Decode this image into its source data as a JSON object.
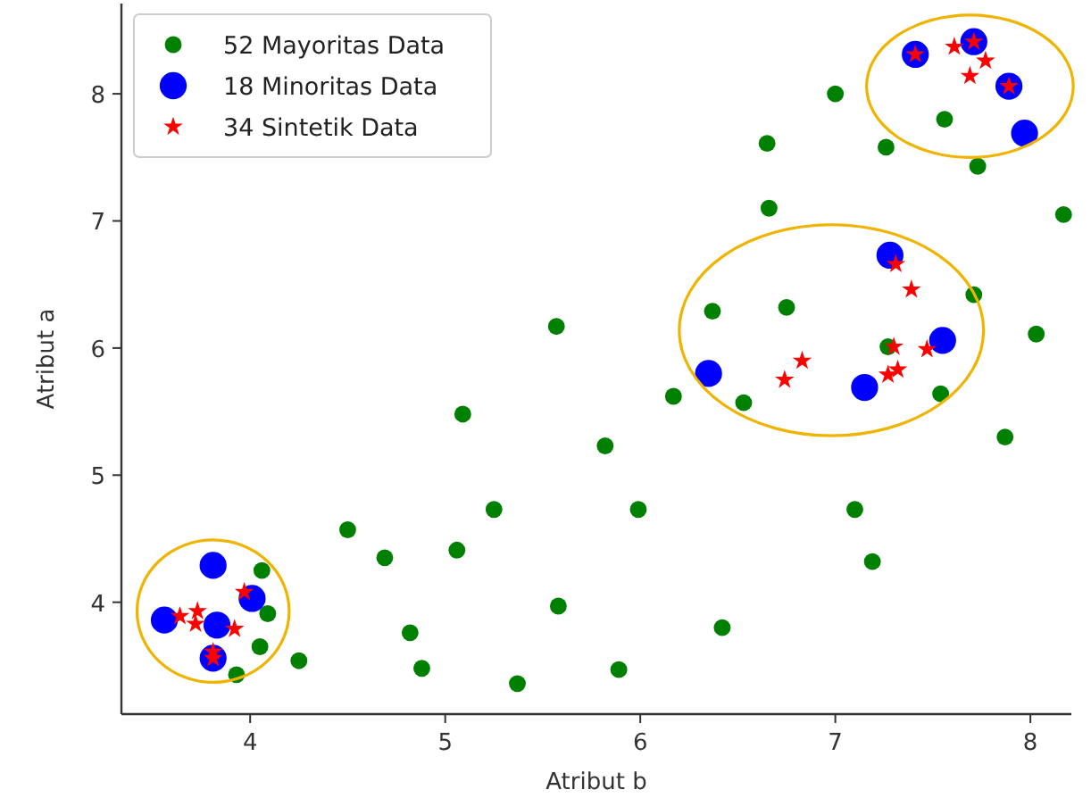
{
  "chart_data": {
    "type": "scatter",
    "xlabel": "Atribut b",
    "ylabel": "Atribut a",
    "xlim": [
      3.34,
      8.21
    ],
    "ylim": [
      3.12,
      8.71
    ],
    "xticks": [
      4,
      5,
      6,
      7,
      8
    ],
    "yticks": [
      4,
      5,
      6,
      7,
      8
    ],
    "grid": false,
    "legend": "top left",
    "series": [
      {
        "name": "52 Mayoritas Data",
        "color": "#008000",
        "marker": "circle",
        "x": [
          7.0,
          6.65,
          7.26,
          7.56,
          7.73,
          6.66,
          8.17,
          6.37,
          6.75,
          7.71,
          5.57,
          8.03,
          7.27,
          6.17,
          6.53,
          7.54,
          7.87,
          5.82,
          5.99,
          7.1,
          7.19,
          5.58,
          6.42,
          5.89,
          4.5,
          4.69,
          5.06,
          5.25,
          4.06,
          4.09,
          4.05,
          3.93,
          4.25,
          4.82,
          4.88,
          5.37,
          5.09
        ],
        "values": [
          8.0,
          7.61,
          7.58,
          7.8,
          7.43,
          7.1,
          7.05,
          6.29,
          6.32,
          6.42,
          6.17,
          6.11,
          6.01,
          5.62,
          5.57,
          5.64,
          5.3,
          5.23,
          4.73,
          4.73,
          4.32,
          3.97,
          3.8,
          3.47,
          4.57,
          4.35,
          4.41,
          4.73,
          4.25,
          3.91,
          3.65,
          3.43,
          3.54,
          3.76,
          3.48,
          3.36,
          5.48
        ]
      },
      {
        "name": "18 Minoritas Data",
        "color": "#0000ff",
        "marker": "circle",
        "x": [
          7.41,
          7.71,
          7.89,
          7.97,
          7.28,
          7.55,
          7.15,
          6.35,
          3.81,
          4.01,
          3.56,
          3.83,
          3.81
        ],
        "values": [
          8.31,
          8.41,
          8.06,
          7.69,
          6.73,
          6.06,
          5.69,
          5.8,
          4.29,
          4.03,
          3.86,
          3.82,
          3.56
        ]
      },
      {
        "name": "34 Sintetik Data",
        "color": "#ff0000",
        "marker": "star",
        "x": [
          7.41,
          7.61,
          7.71,
          7.77,
          7.69,
          7.89,
          7.31,
          7.39,
          7.3,
          7.47,
          6.83,
          6.74,
          7.27,
          7.32,
          3.97,
          3.64,
          3.73,
          3.72,
          3.92,
          3.81,
          3.81
        ],
        "values": [
          8.31,
          8.37,
          8.41,
          8.26,
          8.14,
          8.06,
          6.66,
          6.46,
          6.01,
          5.99,
          5.9,
          5.75,
          5.79,
          5.83,
          4.08,
          3.89,
          3.93,
          3.83,
          3.79,
          3.61,
          3.56
        ]
      }
    ]
  }
}
